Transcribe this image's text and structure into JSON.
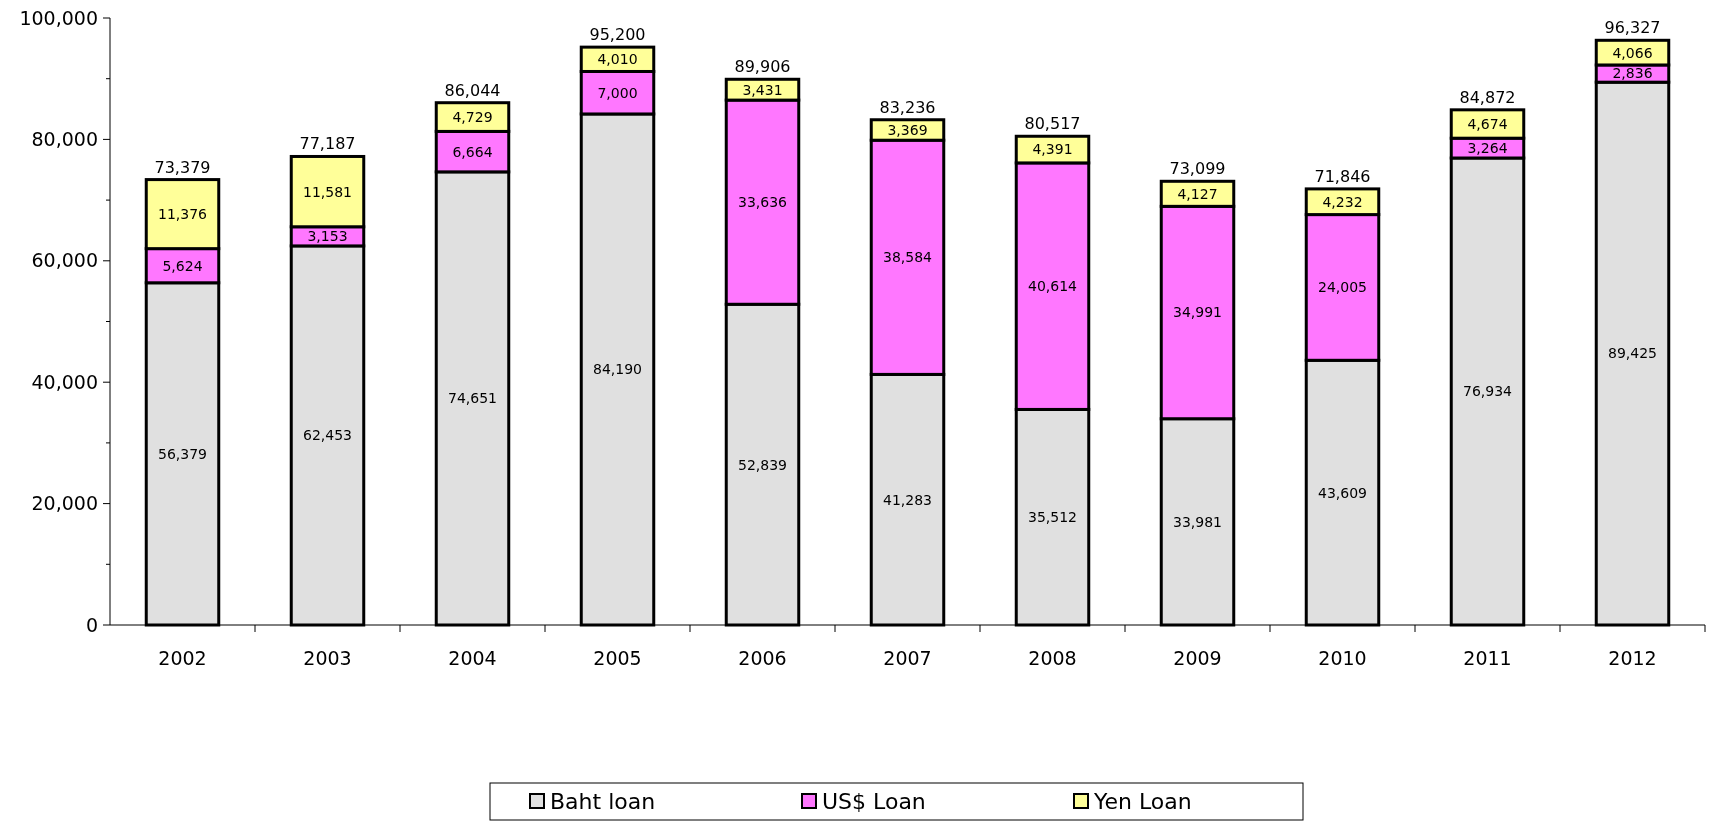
{
  "chart_data": {
    "type": "bar",
    "stacked": true,
    "categories": [
      "2002",
      "2003",
      "2004",
      "2005",
      "2006",
      "2007",
      "2008",
      "2009",
      "2010",
      "2011",
      "2012"
    ],
    "series": [
      {
        "name": "Baht loan",
        "color": "#e0e0e0",
        "values": [
          56379,
          62453,
          74651,
          84190,
          52839,
          41283,
          35512,
          33981,
          43609,
          76934,
          89425
        ],
        "value_labels": [
          "56,379",
          "62,453",
          "74,651",
          "84,190",
          "52,839",
          "41,283",
          "35,512",
          "33,981",
          "43,609",
          "76,934",
          "89,425"
        ]
      },
      {
        "name": "US$ Loan",
        "color": "#ff77ff",
        "values": [
          5624,
          3153,
          6664,
          7000,
          33636,
          38584,
          40614,
          34991,
          24005,
          3264,
          2836
        ],
        "value_labels": [
          "5,624",
          "3,153",
          "6,664",
          "7,000",
          "33,636",
          "38,584",
          "40,614",
          "34,991",
          "24,005",
          "3,264",
          "2,836"
        ]
      },
      {
        "name": "Yen Loan",
        "color": "#ffff99",
        "values": [
          11376,
          11581,
          4729,
          4010,
          3431,
          3369,
          4391,
          4127,
          4232,
          4674,
          4066
        ],
        "value_labels": [
          "11,376",
          "11,581",
          "4,729",
          "4,010",
          "3,431",
          "3,369",
          "4,391",
          "4,127",
          "4,232",
          "4,674",
          "4,066"
        ]
      }
    ],
    "totals": [
      "73,379",
      "77,187",
      "86,044",
      "95,200",
      "89,906",
      "83,236",
      "80,517",
      "73,099",
      "71,846",
      "84,872",
      "96,327"
    ],
    "ylim": [
      0,
      100000
    ],
    "yticks": [
      {
        "value": 0,
        "label": "0"
      },
      {
        "value": 20000,
        "label": "20,000"
      },
      {
        "value": 40000,
        "label": "40,000"
      },
      {
        "value": 60000,
        "label": "60,000"
      },
      {
        "value": 80000,
        "label": "80,000"
      },
      {
        "value": 100000,
        "label": "100,000"
      }
    ],
    "grid": false,
    "legend": "bottom"
  }
}
